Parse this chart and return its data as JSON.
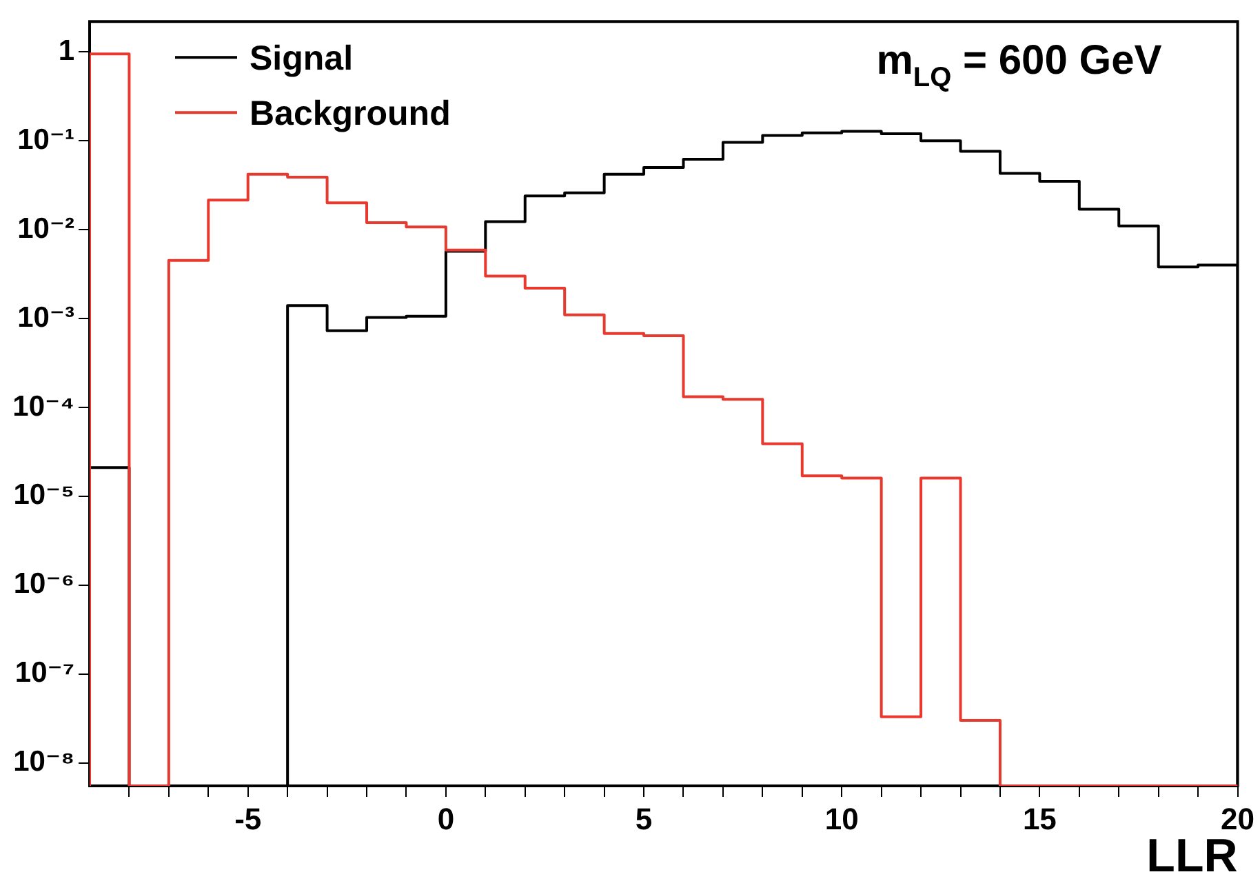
{
  "chart_data": {
    "type": "histogram",
    "xlabel": "LLR",
    "annotations": [
      "m$_{LQ}$ = 600 GeV"
    ],
    "legend": "top left",
    "log": "y",
    "bins": [
      -9,
      -8,
      -7,
      -6,
      -5,
      -4,
      -3,
      -2,
      -1,
      0,
      1,
      2,
      3,
      4,
      5,
      6,
      7,
      8,
      9,
      10,
      11,
      12,
      13,
      14,
      15,
      16,
      17,
      18,
      19,
      20
    ],
    "series": [
      {
        "name": "Signal",
        "color": "#000000",
        "values": [
          2.1e-05,
          null,
          null,
          null,
          null,
          0.0014,
          0.00073,
          0.00103,
          0.00106,
          0.0057,
          0.0123,
          0.024,
          0.026,
          0.042,
          0.05,
          0.062,
          0.096,
          0.115,
          0.123,
          0.128,
          0.12,
          0.1,
          0.076,
          0.043,
          0.035,
          0.017,
          0.011,
          0.0038,
          0.004
        ]
      },
      {
        "name": "Background",
        "color": "#e8392f",
        "values": [
          0.95,
          null,
          0.0045,
          0.0215,
          0.042,
          0.039,
          0.02,
          0.012,
          0.0107,
          0.0059,
          0.003,
          0.0022,
          0.0011,
          0.00068,
          0.00064,
          0.000132,
          0.000123,
          3.9e-05,
          1.7e-05,
          1.6e-05,
          3.3e-08,
          1.6e-05,
          3e-08,
          null,
          null,
          null,
          null,
          null,
          null
        ]
      }
    ],
    "xlim": [
      -9,
      20
    ],
    "xticks": [
      {
        "value": -8,
        "label": null
      },
      {
        "value": -7,
        "label": null
      },
      {
        "value": -6,
        "label": null
      },
      -5,
      {
        "value": -4,
        "label": null
      },
      {
        "value": -3,
        "label": null
      },
      {
        "value": -2,
        "label": null
      },
      {
        "value": -1,
        "label": null
      },
      0,
      {
        "value": 1,
        "label": null
      },
      {
        "value": 2,
        "label": null
      },
      {
        "value": 3,
        "label": null
      },
      {
        "value": 4,
        "label": null
      },
      5,
      {
        "value": 6,
        "label": null
      },
      {
        "value": 7,
        "label": null
      },
      {
        "value": 8,
        "label": null
      },
      {
        "value": 9,
        "label": null
      },
      10,
      {
        "value": 11,
        "label": null
      },
      {
        "value": 12,
        "label": null
      },
      {
        "value": 13,
        "label": null
      },
      {
        "value": 14,
        "label": null
      },
      15,
      {
        "value": 16,
        "label": null
      },
      {
        "value": 17,
        "label": null
      },
      {
        "value": 18,
        "label": null
      },
      {
        "value": 19,
        "label": null
      },
      20
    ],
    "ylim": [
      5.5e-09,
      2.2
    ],
    "yticks": [
      {
        "value": 1e-08,
        "label": "10⁻⁸"
      },
      {
        "value": 1e-07,
        "label": "10⁻⁷"
      },
      {
        "value": 1e-06,
        "label": "10⁻⁶"
      },
      {
        "value": 1e-05,
        "label": "10⁻⁵"
      },
      {
        "value": 0.0001,
        "label": "10⁻⁴"
      },
      {
        "value": 0.001,
        "label": "10⁻³"
      },
      {
        "value": 0.01,
        "label": "10⁻²"
      },
      {
        "value": 0.1,
        "label": "10⁻¹"
      },
      1
    ]
  }
}
